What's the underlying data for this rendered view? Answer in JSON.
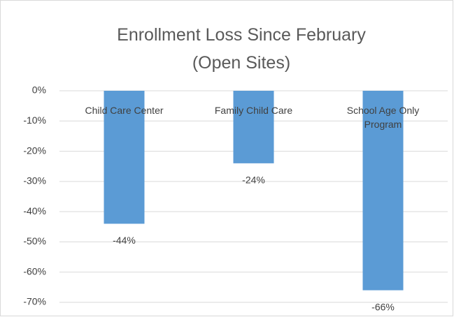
{
  "chart_data": {
    "type": "bar",
    "title": "Enrollment Loss Since February (Open Sites)",
    "categories": [
      "Child Care Center",
      "Family Child Care",
      "School Age Only Program"
    ],
    "values": [
      -44,
      -24,
      -66
    ],
    "value_labels": [
      "-44%",
      "-24%",
      "-66%"
    ],
    "color": "#5b9bd5",
    "ylim": [
      -70,
      0
    ],
    "yticks": [
      {
        "value": 0,
        "label": "0%"
      },
      {
        "value": -10,
        "label": "-10%"
      },
      {
        "value": -20,
        "label": "-20%"
      },
      {
        "value": -30,
        "label": "-30%"
      },
      {
        "value": -40,
        "label": "-40%"
      },
      {
        "value": -50,
        "label": "-50%"
      },
      {
        "value": -60,
        "label": "-60%"
      },
      {
        "value": -70,
        "label": "-70%"
      }
    ],
    "grid": true
  }
}
